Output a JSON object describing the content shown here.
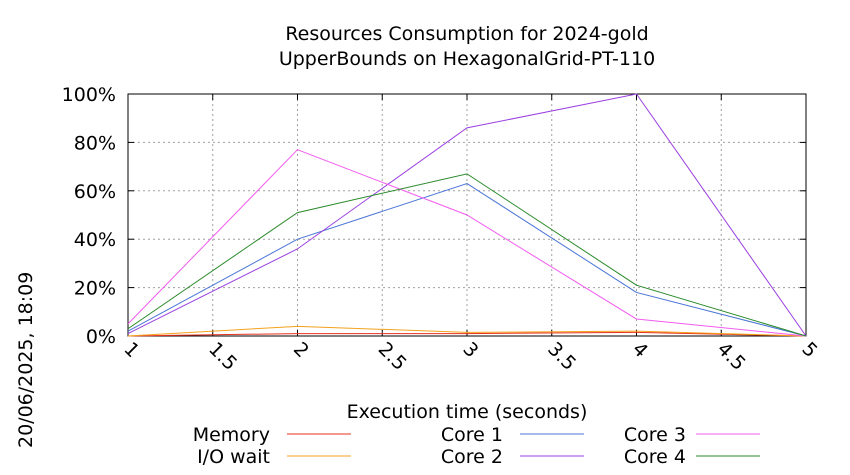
{
  "chart_data": {
    "type": "line",
    "title": [
      "Resources Consumption for 2024-gold",
      "UpperBounds on HexagonalGrid-PT-110"
    ],
    "xlabel": "Execution time (seconds)",
    "ylabel": "",
    "x": [
      1,
      2,
      3,
      4,
      5
    ],
    "xlim": [
      1,
      5
    ],
    "ylim": [
      0,
      100
    ],
    "x_ticks": [
      "1",
      "1.5",
      "2",
      "2.5",
      "3",
      "3.5",
      "4",
      "4.5",
      "5"
    ],
    "x_tick_values": [
      1,
      1.5,
      2,
      2.5,
      3,
      3.5,
      4,
      4.5,
      5
    ],
    "y_ticks": [
      "0%",
      "20%",
      "40%",
      "60%",
      "80%",
      "100%"
    ],
    "y_tick_values": [
      0,
      20,
      40,
      60,
      80,
      100
    ],
    "grid": true,
    "legend_position": "bottom",
    "series": [
      {
        "name": "Memory",
        "color": "#e8321e",
        "values": [
          0,
          1,
          1,
          1.5,
          0
        ]
      },
      {
        "name": "I/O wait",
        "color": "#f4a11c",
        "values": [
          0,
          4,
          1.5,
          2,
          0
        ]
      },
      {
        "name": "Core 1",
        "color": "#4a75d6",
        "values": [
          2,
          40,
          63,
          18,
          0
        ]
      },
      {
        "name": "Core 2",
        "color": "#9a3fe0",
        "values": [
          1,
          36,
          86,
          100,
          0
        ]
      },
      {
        "name": "Core 3",
        "color": "#f25cf0",
        "values": [
          5,
          77,
          50,
          7,
          0
        ]
      },
      {
        "name": "Core 4",
        "color": "#2a8a2a",
        "values": [
          3,
          51,
          67,
          21,
          0
        ]
      }
    ]
  },
  "timestamp": "20/06/2025, 18:09"
}
